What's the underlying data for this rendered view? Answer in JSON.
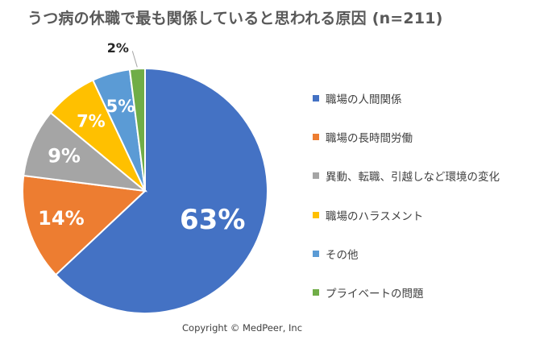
{
  "title": "うつ病の休職で最も関係していると思われる原因 (n=211)",
  "copyright": "Copyright © MedPeer, Inc",
  "chart_data": {
    "type": "pie",
    "title": "うつ病の休職で最も関係していると思われる原因 (n=211)",
    "legend_position": "right",
    "slices": [
      {
        "label": "職場の人間関係",
        "value": 63,
        "display": "63%",
        "color": "#4472C4"
      },
      {
        "label": "職場の長時間労働",
        "value": 14,
        "display": "14%",
        "color": "#ED7D31"
      },
      {
        "label": "異動、転職、引越しなど環境の変化",
        "value": 9,
        "display": "9%",
        "color": "#A5A5A5"
      },
      {
        "label": "職場のハラスメント",
        "value": 7,
        "display": "7%",
        "color": "#FFC000"
      },
      {
        "label": "その他",
        "value": 5,
        "display": "5%",
        "color": "#5B9BD5"
      },
      {
        "label": "プライベートの問題",
        "value": 2,
        "display": "2%",
        "color": "#70AD47"
      }
    ]
  }
}
